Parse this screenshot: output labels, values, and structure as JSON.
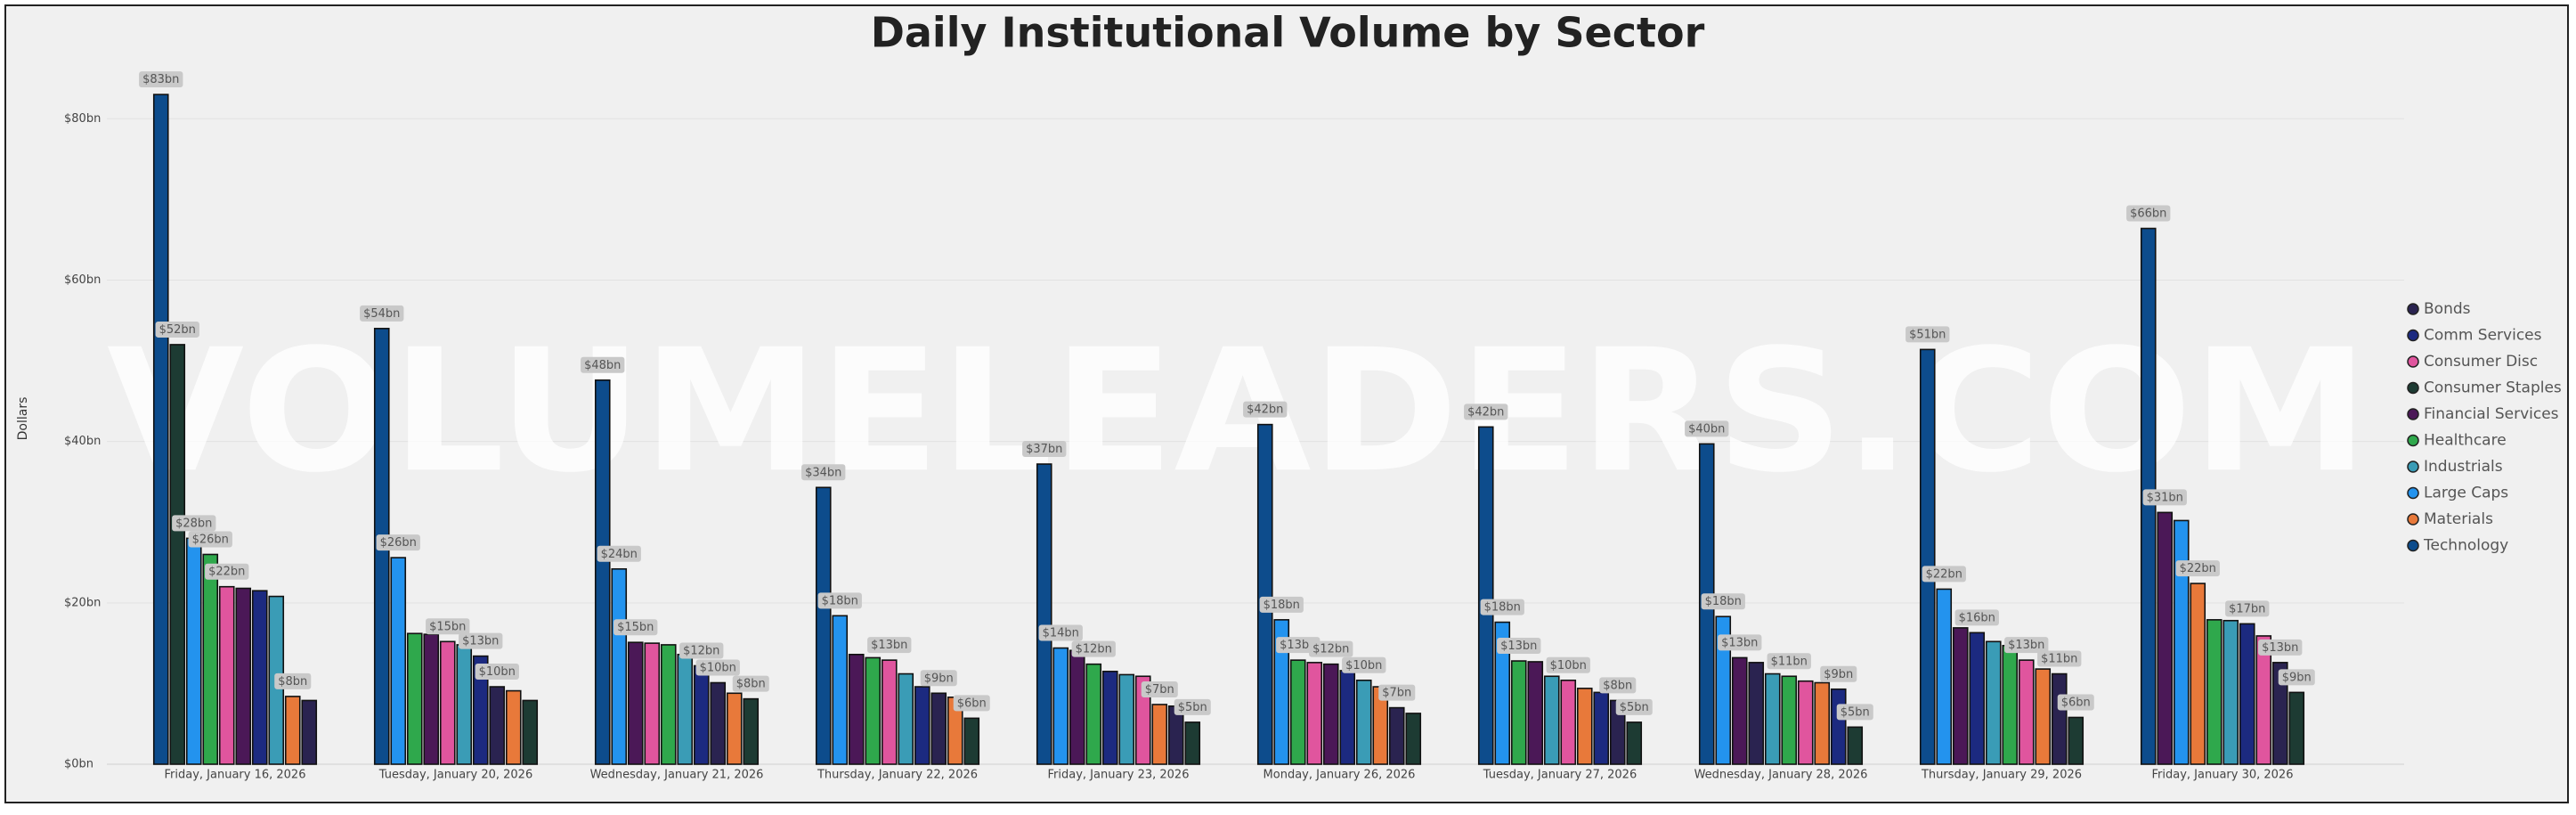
{
  "chart_data": {
    "type": "bar",
    "title": "Daily Institutional Volume by Sector",
    "watermark": "VOLUMELEADERS.COM",
    "y_label": "Dollars",
    "categories": [
      "Friday, January 16, 2026",
      "Tuesday, January 20, 2026",
      "Wednesday, January 21, 2026",
      "Thursday, January 22, 2026",
      "Friday, January 23, 2026",
      "Monday, January 26, 2026",
      "Tuesday, January 27, 2026",
      "Wednesday, January 28, 2026",
      "Thursday, January 29, 2026",
      "Friday, January 30, 2026"
    ],
    "ylim": [
      0,
      85
    ],
    "yticks": [
      {
        "value": 0,
        "label": "$0bn"
      },
      {
        "value": 20,
        "label": "$20bn"
      },
      {
        "value": 40,
        "label": "$40bn"
      },
      {
        "value": 60,
        "label": "$60bn"
      },
      {
        "value": 80,
        "label": "$80bn"
      }
    ],
    "grid": true,
    "legend": "right",
    "series": [
      {
        "name": "Bonds",
        "color": "#2a2350",
        "values": [
          7.9,
          9.6,
          10.1,
          8.8,
          7.2,
          7.0,
          7.9,
          12.6,
          11.2,
          12.6
        ],
        "value_labels": [
          null,
          "$10bn",
          "$10bn",
          "$9bn",
          null,
          "$7bn",
          "$8bn",
          null,
          "$11bn",
          "$13bn"
        ]
      },
      {
        "name": "Comm Services",
        "color": "#1c2a80",
        "values": [
          21.5,
          13.4,
          12.2,
          9.6,
          11.5,
          11.6,
          8.9,
          9.3,
          16.3,
          17.4
        ],
        "value_labels": [
          null,
          "$13bn",
          "$12bn",
          null,
          null,
          null,
          null,
          "$9bn",
          "$16bn",
          "$17bn"
        ]
      },
      {
        "name": "Consumer Disc",
        "color": "#e0559e",
        "values": [
          22,
          15.2,
          15.0,
          12.9,
          10.9,
          12.6,
          10.4,
          10.3,
          12.9,
          15.9
        ],
        "value_labels": [
          "$22bn",
          "$15bn",
          null,
          "$13bn",
          null,
          null,
          "$10bn",
          null,
          "$13bn",
          null
        ]
      },
      {
        "name": "Consumer Staples",
        "color": "#1d3b33",
        "values": [
          52,
          7.9,
          8.1,
          5.7,
          5.2,
          6.3,
          5.2,
          4.6,
          5.8,
          8.9
        ],
        "value_labels": [
          "$52bn",
          null,
          "$8bn",
          "$6bn",
          "$5bn",
          null,
          "$5bn",
          "$5bn",
          "$6bn",
          "$9bn"
        ]
      },
      {
        "name": "Financial Services",
        "color": "#4b1857",
        "values": [
          21.8,
          16.1,
          15.1,
          13.6,
          14.1,
          12.4,
          12.7,
          13.2,
          16.9,
          31.2
        ],
        "value_labels": [
          null,
          null,
          "$15bn",
          null,
          null,
          "$12bn",
          null,
          "$13bn",
          null,
          "$31bn"
        ]
      },
      {
        "name": "Healthcare",
        "color": "#2fa84c",
        "values": [
          26,
          16.2,
          14.8,
          13.2,
          12.4,
          12.9,
          12.8,
          10.9,
          14.7,
          17.9
        ],
        "value_labels": [
          "$26bn",
          null,
          null,
          null,
          "$12bn",
          "$13bn",
          "$13bn",
          "$11bn",
          null,
          null
        ]
      },
      {
        "name": "Industrials",
        "color": "#3a9cb6",
        "values": [
          20.8,
          14.8,
          13.6,
          11.2,
          11.1,
          10.4,
          10.9,
          11.2,
          15.2,
          17.8
        ],
        "value_labels": [
          null,
          null,
          null,
          null,
          null,
          "$10bn",
          null,
          null,
          null,
          null
        ]
      },
      {
        "name": "Large Caps",
        "color": "#2393ee",
        "values": [
          28,
          25.6,
          24.2,
          18.4,
          14.4,
          17.9,
          17.6,
          18.3,
          21.7,
          30.2
        ],
        "value_labels": [
          "$28bn",
          "$26bn",
          "$24bn",
          "$18bn",
          "$14bn",
          "$18bn",
          "$18bn",
          "$18bn",
          "$22bn",
          null
        ]
      },
      {
        "name": "Materials",
        "color": "#e8793a",
        "values": [
          8.4,
          9.1,
          8.8,
          8.3,
          7.4,
          9.6,
          9.4,
          10.1,
          11.8,
          22.4
        ],
        "value_labels": [
          "$8bn",
          null,
          null,
          null,
          "$7bn",
          null,
          null,
          null,
          null,
          "$22bn"
        ]
      },
      {
        "name": "Technology",
        "color": "#0d4c8c",
        "values": [
          83,
          54,
          47.6,
          34.3,
          37.2,
          42.1,
          41.8,
          39.7,
          51.4,
          66.4
        ],
        "value_labels": [
          "$83bn",
          "$54bn",
          "$48bn",
          "$34bn",
          "$37bn",
          "$42bn",
          "$42bn",
          "$40bn",
          "$51bn",
          "$66bn"
        ]
      }
    ]
  }
}
